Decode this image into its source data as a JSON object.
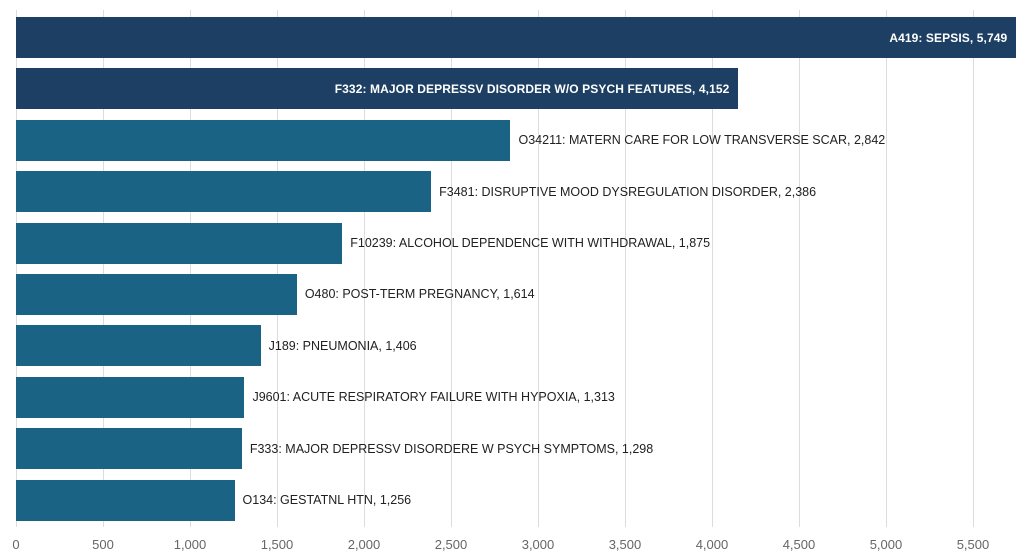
{
  "chart_data": {
    "type": "bar",
    "orientation": "horizontal",
    "title": "",
    "xlabel": "",
    "ylabel": "",
    "xlim": [
      0,
      5845
    ],
    "x_ticks": [
      0,
      500,
      1000,
      1500,
      2000,
      2500,
      3000,
      3500,
      4000,
      4500,
      5000,
      5500
    ],
    "x_tick_labels": [
      "0",
      "500",
      "1,000",
      "1,500",
      "2,000",
      "2,500",
      "3,000",
      "3,500",
      "4,000",
      "4,500",
      "5,000",
      "5,500"
    ],
    "grid": "vertical",
    "legend": "none",
    "categories": [
      "A419",
      "F332",
      "O34211",
      "F3481",
      "F10239",
      "O480",
      "J189",
      "J9601",
      "F333",
      "O134"
    ],
    "values": [
      5749,
      4152,
      2842,
      2386,
      1875,
      1614,
      1406,
      1313,
      1298,
      1256
    ],
    "bars": [
      {
        "code": "A419",
        "label": "A419: SEPSIS, 5,749",
        "value": 5749,
        "highlighted": true,
        "label_position": "inside"
      },
      {
        "code": "F332",
        "label": "F332: MAJOR DEPRESSV DISORDER W/O PSYCH FEATURES, 4,152",
        "value": 4152,
        "highlighted": true,
        "label_position": "inside"
      },
      {
        "code": "O34211",
        "label": "O34211: MATERN CARE FOR LOW TRANSVERSE SCAR, 2,842",
        "value": 2842,
        "highlighted": false,
        "label_position": "outside"
      },
      {
        "code": "F3481",
        "label": "F3481: DISRUPTIVE MOOD DYSREGULATION DISORDER, 2,386",
        "value": 2386,
        "highlighted": false,
        "label_position": "outside"
      },
      {
        "code": "F10239",
        "label": "F10239: ALCOHOL DEPENDENCE WITH WITHDRAWAL, 1,875",
        "value": 1875,
        "highlighted": false,
        "label_position": "outside"
      },
      {
        "code": "O480",
        "label": "O480: POST-TERM PREGNANCY, 1,614",
        "value": 1614,
        "highlighted": false,
        "label_position": "outside"
      },
      {
        "code": "J189",
        "label": "J189: PNEUMONIA, 1,406",
        "value": 1406,
        "highlighted": false,
        "label_position": "outside"
      },
      {
        "code": "J9601",
        "label": "J9601: ACUTE RESPIRATORY FAILURE WITH HYPOXIA, 1,313",
        "value": 1313,
        "highlighted": false,
        "label_position": "outside"
      },
      {
        "code": "F333",
        "label": "F333: MAJOR DEPRESSV DISORDERE W PSYCH SYMPTOMS, 1,298",
        "value": 1298,
        "highlighted": false,
        "label_position": "outside"
      },
      {
        "code": "O134",
        "label": "O134: GESTATNL HTN, 1,256",
        "value": 1256,
        "highlighted": false,
        "label_position": "outside"
      }
    ],
    "colors": {
      "highlighted_bar": "#1c3f63",
      "default_bar": "#1b6385",
      "gridline": "#dcdcdc",
      "tick_label": "#666666",
      "outside_label": "#212121",
      "inside_label": "#ffffff",
      "background": "#ffffff"
    }
  }
}
